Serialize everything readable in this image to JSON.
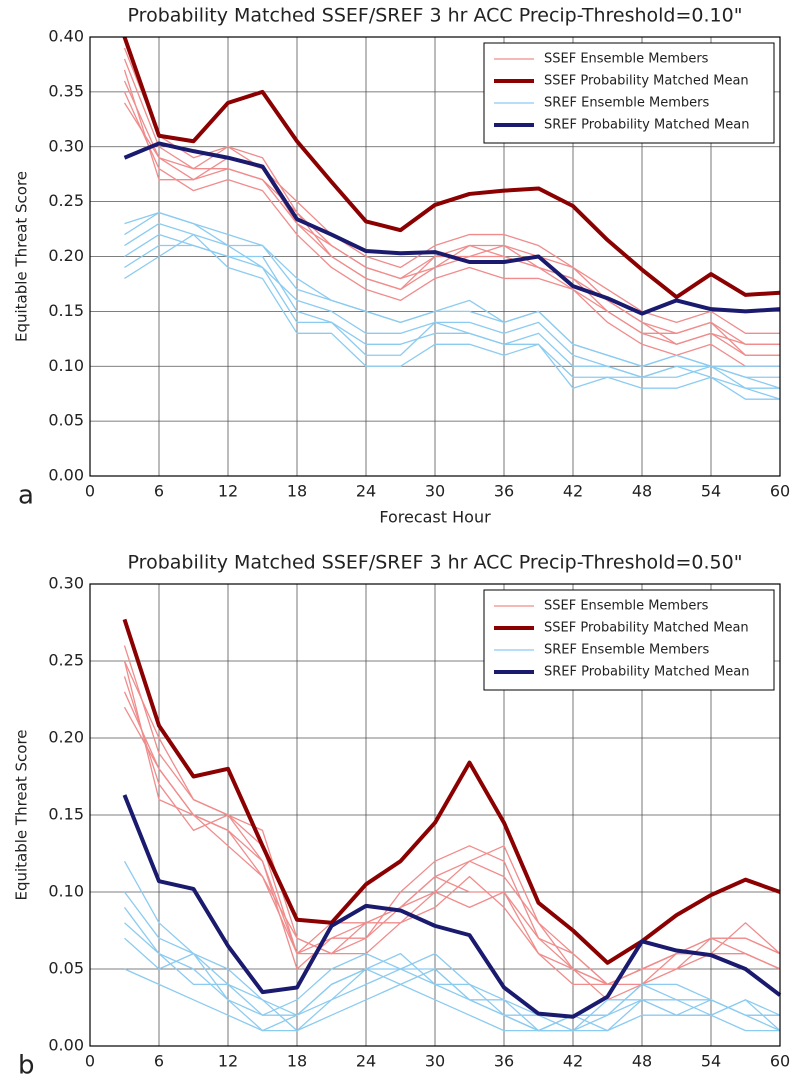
{
  "chart_data": [
    {
      "type": "line",
      "panel_label": "a",
      "title": "Probability Matched SSEF/SREF 3 hr ACC Precip-Threshold=0.10\"",
      "xlabel": "Forecast Hour",
      "ylabel": "Equitable Threat Score",
      "grid": true,
      "legend": "upper right",
      "x": [
        3,
        6,
        9,
        12,
        15,
        18,
        21,
        24,
        27,
        30,
        33,
        36,
        39,
        42,
        45,
        48,
        51,
        54,
        57,
        60
      ],
      "xlim": [
        0,
        60
      ],
      "xticks": [
        0,
        6,
        12,
        18,
        24,
        30,
        36,
        42,
        48,
        54,
        60
      ],
      "ylim": [
        0,
        0.4
      ],
      "yticks": [
        {
          "value": 0,
          "label": "0.00"
        },
        {
          "value": 0.05,
          "label": "0.05"
        },
        {
          "value": 0.1,
          "label": "0.10"
        },
        {
          "value": 0.15,
          "label": "0.15"
        },
        {
          "value": 0.2,
          "label": "0.20"
        },
        {
          "value": 0.25,
          "label": "0.25"
        },
        {
          "value": 0.3,
          "label": "0.30"
        },
        {
          "value": 0.35,
          "label": "0.35"
        },
        {
          "value": 0.4,
          "label": "0.40"
        }
      ],
      "series": [
        {
          "name": "SSEF Ensemble Members",
          "color": "#f08c8c",
          "lines": [
            [
              0.38,
              0.3,
              0.28,
              0.3,
              0.29,
              0.24,
              0.21,
              0.19,
              0.18,
              0.2,
              0.21,
              0.21,
              0.2,
              0.19,
              0.16,
              0.14,
              0.13,
              0.14,
              0.12,
              0.12
            ],
            [
              0.36,
              0.29,
              0.27,
              0.28,
              0.27,
              0.23,
              0.2,
              0.18,
              0.17,
              0.19,
              0.2,
              0.2,
              0.19,
              0.18,
              0.15,
              0.13,
              0.12,
              0.13,
              0.11,
              0.11
            ],
            [
              0.39,
              0.31,
              0.29,
              0.3,
              0.28,
              0.25,
              0.22,
              0.2,
              0.19,
              0.21,
              0.22,
              0.22,
              0.21,
              0.19,
              0.17,
              0.15,
              0.14,
              0.15,
              0.13,
              0.13
            ],
            [
              0.35,
              0.28,
              0.26,
              0.27,
              0.26,
              0.22,
              0.19,
              0.17,
              0.16,
              0.18,
              0.19,
              0.18,
              0.18,
              0.17,
              0.14,
              0.12,
              0.11,
              0.12,
              0.1,
              0.1
            ],
            [
              0.37,
              0.27,
              0.27,
              0.29,
              0.28,
              0.23,
              0.21,
              0.19,
              0.18,
              0.19,
              0.21,
              0.2,
              0.19,
              0.18,
              0.16,
              0.14,
              0.12,
              0.13,
              0.12,
              0.12
            ],
            [
              0.34,
              0.29,
              0.28,
              0.28,
              0.27,
              0.24,
              0.2,
              0.18,
              0.17,
              0.2,
              0.2,
              0.21,
              0.19,
              0.17,
              0.15,
              0.13,
              0.13,
              0.14,
              0.11,
              0.11
            ]
          ]
        },
        {
          "name": "SSEF Probability Matched Mean",
          "color": "#8b0000",
          "values": [
            0.4,
            0.31,
            0.305,
            0.34,
            0.35,
            0.305,
            0.268,
            0.232,
            0.224,
            0.247,
            0.257,
            0.26,
            0.262,
            0.246,
            0.215,
            0.188,
            0.163,
            0.184,
            0.165,
            0.167
          ]
        },
        {
          "name": "SREF Ensemble Members",
          "color": "#8ccbf0",
          "lines": [
            [
              0.22,
              0.24,
              0.23,
              0.22,
              0.21,
              0.17,
              0.16,
              0.15,
              0.14,
              0.15,
              0.15,
              0.14,
              0.15,
              0.12,
              0.11,
              0.1,
              0.11,
              0.1,
              0.09,
              0.09
            ],
            [
              0.2,
              0.22,
              0.21,
              0.2,
              0.2,
              0.15,
              0.14,
              0.12,
              0.12,
              0.13,
              0.13,
              0.12,
              0.13,
              0.1,
              0.1,
              0.09,
              0.1,
              0.09,
              0.08,
              0.08
            ],
            [
              0.19,
              0.21,
              0.21,
              0.2,
              0.19,
              0.14,
              0.14,
              0.11,
              0.11,
              0.14,
              0.13,
              0.12,
              0.12,
              0.09,
              0.09,
              0.09,
              0.09,
              0.1,
              0.09,
              0.08
            ],
            [
              0.23,
              0.24,
              0.23,
              0.21,
              0.21,
              0.18,
              0.16,
              0.15,
              0.14,
              0.15,
              0.16,
              0.14,
              0.15,
              0.12,
              0.11,
              0.1,
              0.11,
              0.1,
              0.1,
              0.1
            ],
            [
              0.21,
              0.23,
              0.22,
              0.21,
              0.19,
              0.16,
              0.15,
              0.13,
              0.13,
              0.14,
              0.14,
              0.13,
              0.14,
              0.11,
              0.1,
              0.09,
              0.1,
              0.1,
              0.08,
              0.07
            ],
            [
              0.18,
              0.2,
              0.22,
              0.19,
              0.18,
              0.13,
              0.13,
              0.1,
              0.1,
              0.12,
              0.12,
              0.11,
              0.12,
              0.08,
              0.09,
              0.08,
              0.08,
              0.09,
              0.07,
              0.07
            ]
          ]
        },
        {
          "name": "SREF Probability Matched Mean",
          "color": "#1a1a6e",
          "values": [
            0.29,
            0.303,
            0.296,
            0.29,
            0.282,
            0.234,
            0.22,
            0.205,
            0.203,
            0.204,
            0.195,
            0.195,
            0.2,
            0.173,
            0.162,
            0.148,
            0.16,
            0.152,
            0.15,
            0.152
          ]
        }
      ]
    },
    {
      "type": "line",
      "panel_label": "b",
      "title": "Probability Matched SSEF/SREF 3 hr ACC Precip-Threshold=0.50\"",
      "xlabel": "Forecast Hour",
      "ylabel": "Equitable Threat Score",
      "grid": true,
      "legend": "upper right",
      "x": [
        3,
        6,
        9,
        12,
        15,
        18,
        21,
        24,
        27,
        30,
        33,
        36,
        39,
        42,
        45,
        48,
        51,
        54,
        57,
        60
      ],
      "xlim": [
        0,
        60
      ],
      "xticks": [
        0,
        6,
        12,
        18,
        24,
        30,
        36,
        42,
        48,
        54,
        60
      ],
      "ylim": [
        0,
        0.3
      ],
      "yticks": [
        {
          "value": 0,
          "label": "0.00"
        },
        {
          "value": 0.05,
          "label": "0.05"
        },
        {
          "value": 0.1,
          "label": "0.10"
        },
        {
          "value": 0.15,
          "label": "0.15"
        },
        {
          "value": 0.2,
          "label": "0.20"
        },
        {
          "value": 0.25,
          "label": "0.25"
        },
        {
          "value": 0.3,
          "label": "0.30"
        }
      ],
      "series": [
        {
          "name": "SSEF Ensemble Members",
          "color": "#f08c8c",
          "lines": [
            [
              0.25,
              0.2,
              0.16,
              0.15,
              0.12,
              0.06,
              0.07,
              0.08,
              0.09,
              0.1,
              0.12,
              0.11,
              0.08,
              0.06,
              0.04,
              0.05,
              0.06,
              0.07,
              0.07,
              0.06
            ],
            [
              0.23,
              0.18,
              0.15,
              0.14,
              0.11,
              0.07,
              0.06,
              0.07,
              0.1,
              0.12,
              0.13,
              0.12,
              0.07,
              0.05,
              0.04,
              0.05,
              0.06,
              0.06,
              0.06,
              0.05
            ],
            [
              0.26,
              0.19,
              0.16,
              0.15,
              0.13,
              0.06,
              0.08,
              0.08,
              0.09,
              0.11,
              0.1,
              0.1,
              0.06,
              0.05,
              0.03,
              0.04,
              0.05,
              0.07,
              0.07,
              0.06
            ],
            [
              0.24,
              0.17,
              0.14,
              0.15,
              0.14,
              0.07,
              0.06,
              0.06,
              0.08,
              0.09,
              0.11,
              0.09,
              0.06,
              0.04,
              0.04,
              0.05,
              0.05,
              0.06,
              0.06,
              0.05
            ],
            [
              0.22,
              0.18,
              0.15,
              0.14,
              0.12,
              0.05,
              0.07,
              0.07,
              0.09,
              0.11,
              0.12,
              0.13,
              0.08,
              0.05,
              0.04,
              0.04,
              0.06,
              0.06,
              0.08,
              0.06
            ],
            [
              0.25,
              0.16,
              0.15,
              0.13,
              0.11,
              0.06,
              0.06,
              0.08,
              0.08,
              0.1,
              0.09,
              0.1,
              0.07,
              0.06,
              0.04,
              0.05,
              0.06,
              0.07,
              0.06,
              0.05
            ]
          ]
        },
        {
          "name": "SSEF Probability Matched Mean",
          "color": "#8b0000",
          "values": [
            0.277,
            0.208,
            0.175,
            0.18,
            0.13,
            0.082,
            0.08,
            0.105,
            0.12,
            0.145,
            0.184,
            0.145,
            0.093,
            0.075,
            0.054,
            0.068,
            0.085,
            0.098,
            0.108,
            0.1
          ]
        },
        {
          "name": "SREF Ensemble Members",
          "color": "#8ccbf0",
          "lines": [
            [
              0.12,
              0.08,
              0.06,
              0.05,
              0.03,
              0.02,
              0.04,
              0.05,
              0.05,
              0.04,
              0.04,
              0.02,
              0.01,
              0.02,
              0.02,
              0.03,
              0.03,
              0.03,
              0.02,
              0.02
            ],
            [
              0.1,
              0.07,
              0.06,
              0.04,
              0.02,
              0.03,
              0.05,
              0.06,
              0.05,
              0.05,
              0.03,
              0.02,
              0.02,
              0.01,
              0.02,
              0.04,
              0.03,
              0.02,
              0.03,
              0.02
            ],
            [
              0.09,
              0.06,
              0.05,
              0.03,
              0.02,
              0.02,
              0.04,
              0.05,
              0.06,
              0.04,
              0.03,
              0.03,
              0.01,
              0.01,
              0.03,
              0.03,
              0.02,
              0.03,
              0.02,
              0.01
            ],
            [
              0.08,
              0.06,
              0.04,
              0.04,
              0.03,
              0.01,
              0.03,
              0.04,
              0.05,
              0.06,
              0.04,
              0.03,
              0.02,
              0.02,
              0.02,
              0.04,
              0.04,
              0.03,
              0.02,
              0.02
            ],
            [
              0.07,
              0.05,
              0.06,
              0.03,
              0.01,
              0.02,
              0.03,
              0.05,
              0.04,
              0.05,
              0.03,
              0.02,
              0.01,
              0.02,
              0.01,
              0.03,
              0.02,
              0.02,
              0.03,
              0.01
            ],
            [
              0.05,
              0.04,
              0.03,
              0.02,
              0.01,
              0.01,
              0.02,
              0.03,
              0.04,
              0.03,
              0.02,
              0.01,
              0.01,
              0.01,
              0.01,
              0.02,
              0.02,
              0.02,
              0.01,
              0.01
            ]
          ]
        },
        {
          "name": "SREF Probability Matched Mean",
          "color": "#1a1a6e",
          "values": [
            0.163,
            0.107,
            0.102,
            0.065,
            0.035,
            0.038,
            0.078,
            0.091,
            0.088,
            0.078,
            0.072,
            0.038,
            0.021,
            0.019,
            0.032,
            0.068,
            0.062,
            0.059,
            0.05,
            0.033
          ]
        }
      ]
    }
  ]
}
